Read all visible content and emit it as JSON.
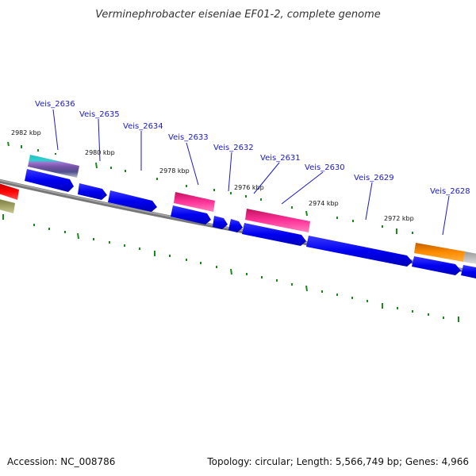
{
  "title": "Verminephrobacter eiseniae EF01-2, complete genome",
  "footer": {
    "accession": "Accession: NC_008786",
    "summary": "Topology: circular; Length: 5,566,749 bp; Genes: 4,966"
  },
  "colors": {
    "cds": "#0a0ae6",
    "backbone": "#888888",
    "ticks": "#1a8a1a",
    "label": "#1a1acd"
  },
  "gene_labels": [
    "Veis_2636",
    "Veis_2635",
    "Veis_2634",
    "Veis_2633",
    "Veis_2632",
    "Veis_2631",
    "Veis_2630",
    "Veis_2629",
    "Veis_2628"
  ],
  "kbp_labels": [
    "2982 kbp",
    "2980 kbp",
    "2978 kbp",
    "2976 kbp",
    "2974 kbp",
    "2972 kbp"
  ]
}
